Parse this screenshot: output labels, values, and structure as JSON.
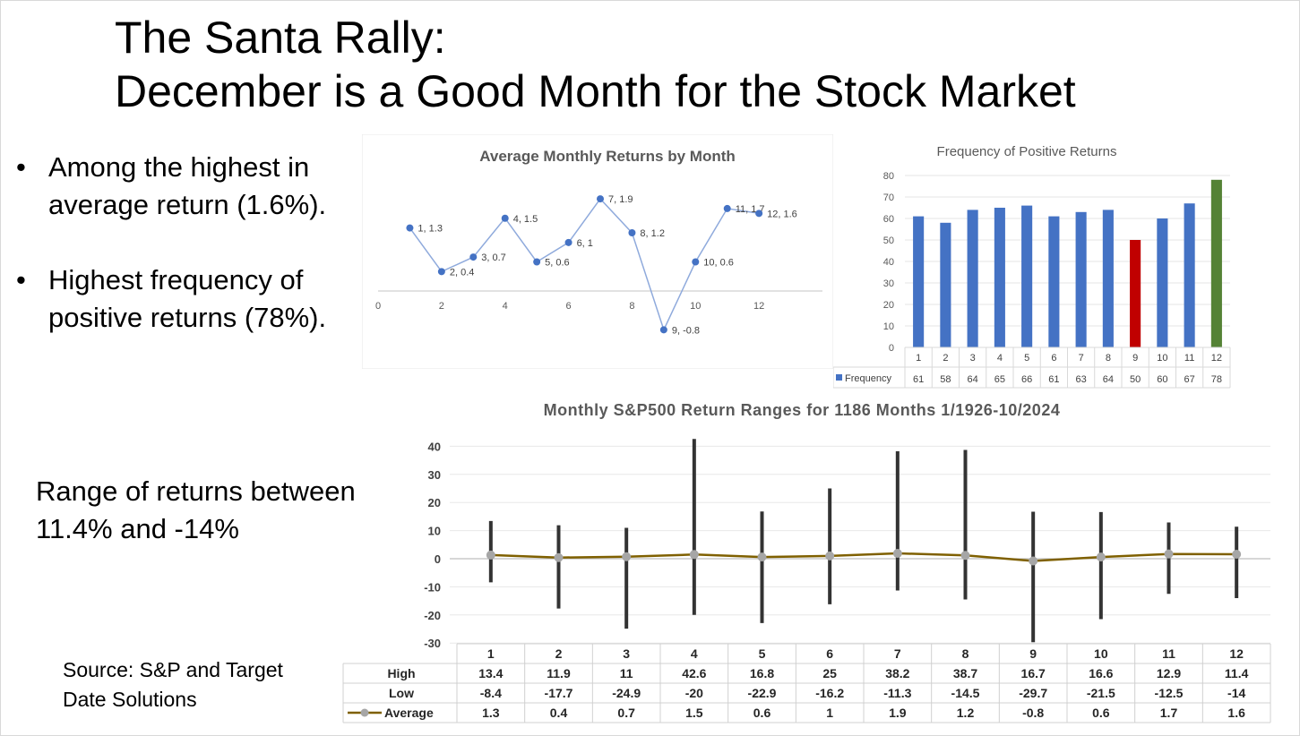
{
  "slide": {
    "title_line1": "The Santa Rally:",
    "title_line2": "December is a Good Month for the Stock Market",
    "bullets": [
      "Among the highest in average return (1.6%).",
      "Highest frequency of positive returns (78%)."
    ],
    "range_note": "Range of returns between 11.4% and -14%",
    "source_note": "Source: S&P and Target Date Solutions"
  },
  "chart_data": [
    {
      "type": "scatter",
      "title": "Average Monthly Returns by Month",
      "x": [
        1,
        2,
        3,
        4,
        5,
        6,
        7,
        8,
        9,
        10,
        11,
        12
      ],
      "y": [
        1.3,
        0.4,
        0.7,
        1.5,
        0.6,
        1,
        1.9,
        1.2,
        -0.8,
        0.6,
        1.7,
        1.6
      ],
      "point_labels": [
        "1, 1.3",
        "2, 0.4",
        "3, 0.7",
        "4, 1.5",
        "5, 0.6",
        "6, 1",
        "7, 1.9",
        "8, 1.2",
        "9, -0.8",
        "10, 0.6",
        "11, 1.7",
        "12, 1.6"
      ],
      "x_ticks": [
        "0",
        "2",
        "4",
        "6",
        "8",
        "10",
        "12"
      ],
      "xlim": [
        0,
        14
      ],
      "ylim": [
        -1.2,
        2.4
      ],
      "line_color": "#4472c4",
      "marker_color": "#4472c4"
    },
    {
      "type": "bar",
      "title": "Frequency of Positive Returns",
      "categories": [
        "1",
        "2",
        "3",
        "4",
        "5",
        "6",
        "7",
        "8",
        "9",
        "10",
        "11",
        "12"
      ],
      "series": [
        {
          "name": "Frequency",
          "values": [
            61,
            58,
            64,
            65,
            66,
            61,
            63,
            64,
            50,
            60,
            67,
            78
          ]
        }
      ],
      "y_ticks": [
        "0",
        "10",
        "20",
        "30",
        "40",
        "50",
        "60",
        "70",
        "80"
      ],
      "ylim": [
        0,
        80
      ],
      "bar_color": "#4472c4",
      "lowest_color": "#c00000",
      "highest_color": "#548235"
    },
    {
      "type": "line",
      "title": "Monthly S&P500 Return Ranges for 1186 Months 1/1926-10/2024",
      "categories": [
        "1",
        "2",
        "3",
        "4",
        "5",
        "6",
        "7",
        "8",
        "9",
        "10",
        "11",
        "12"
      ],
      "series": [
        {
          "name": "High",
          "values": [
            13.4,
            11.9,
            11,
            42.6,
            16.8,
            25,
            38.2,
            38.7,
            16.7,
            16.6,
            12.9,
            11.4
          ]
        },
        {
          "name": "Low",
          "values": [
            -8.4,
            -17.7,
            -24.9,
            -20,
            -22.9,
            -16.2,
            -11.3,
            -14.5,
            -29.7,
            -21.5,
            -12.5,
            -14
          ]
        },
        {
          "name": "Average",
          "values": [
            1.3,
            0.4,
            0.7,
            1.5,
            0.6,
            1,
            1.9,
            1.2,
            -0.8,
            0.6,
            1.7,
            1.6
          ]
        }
      ],
      "y_ticks": [
        "40",
        "30",
        "20",
        "10",
        "0",
        "-10",
        "-20",
        "-30"
      ],
      "ylim": [
        -30,
        40
      ],
      "range_color": "#333333",
      "average_color": "#7f6000",
      "average_marker_color": "#a6a6a6"
    }
  ]
}
